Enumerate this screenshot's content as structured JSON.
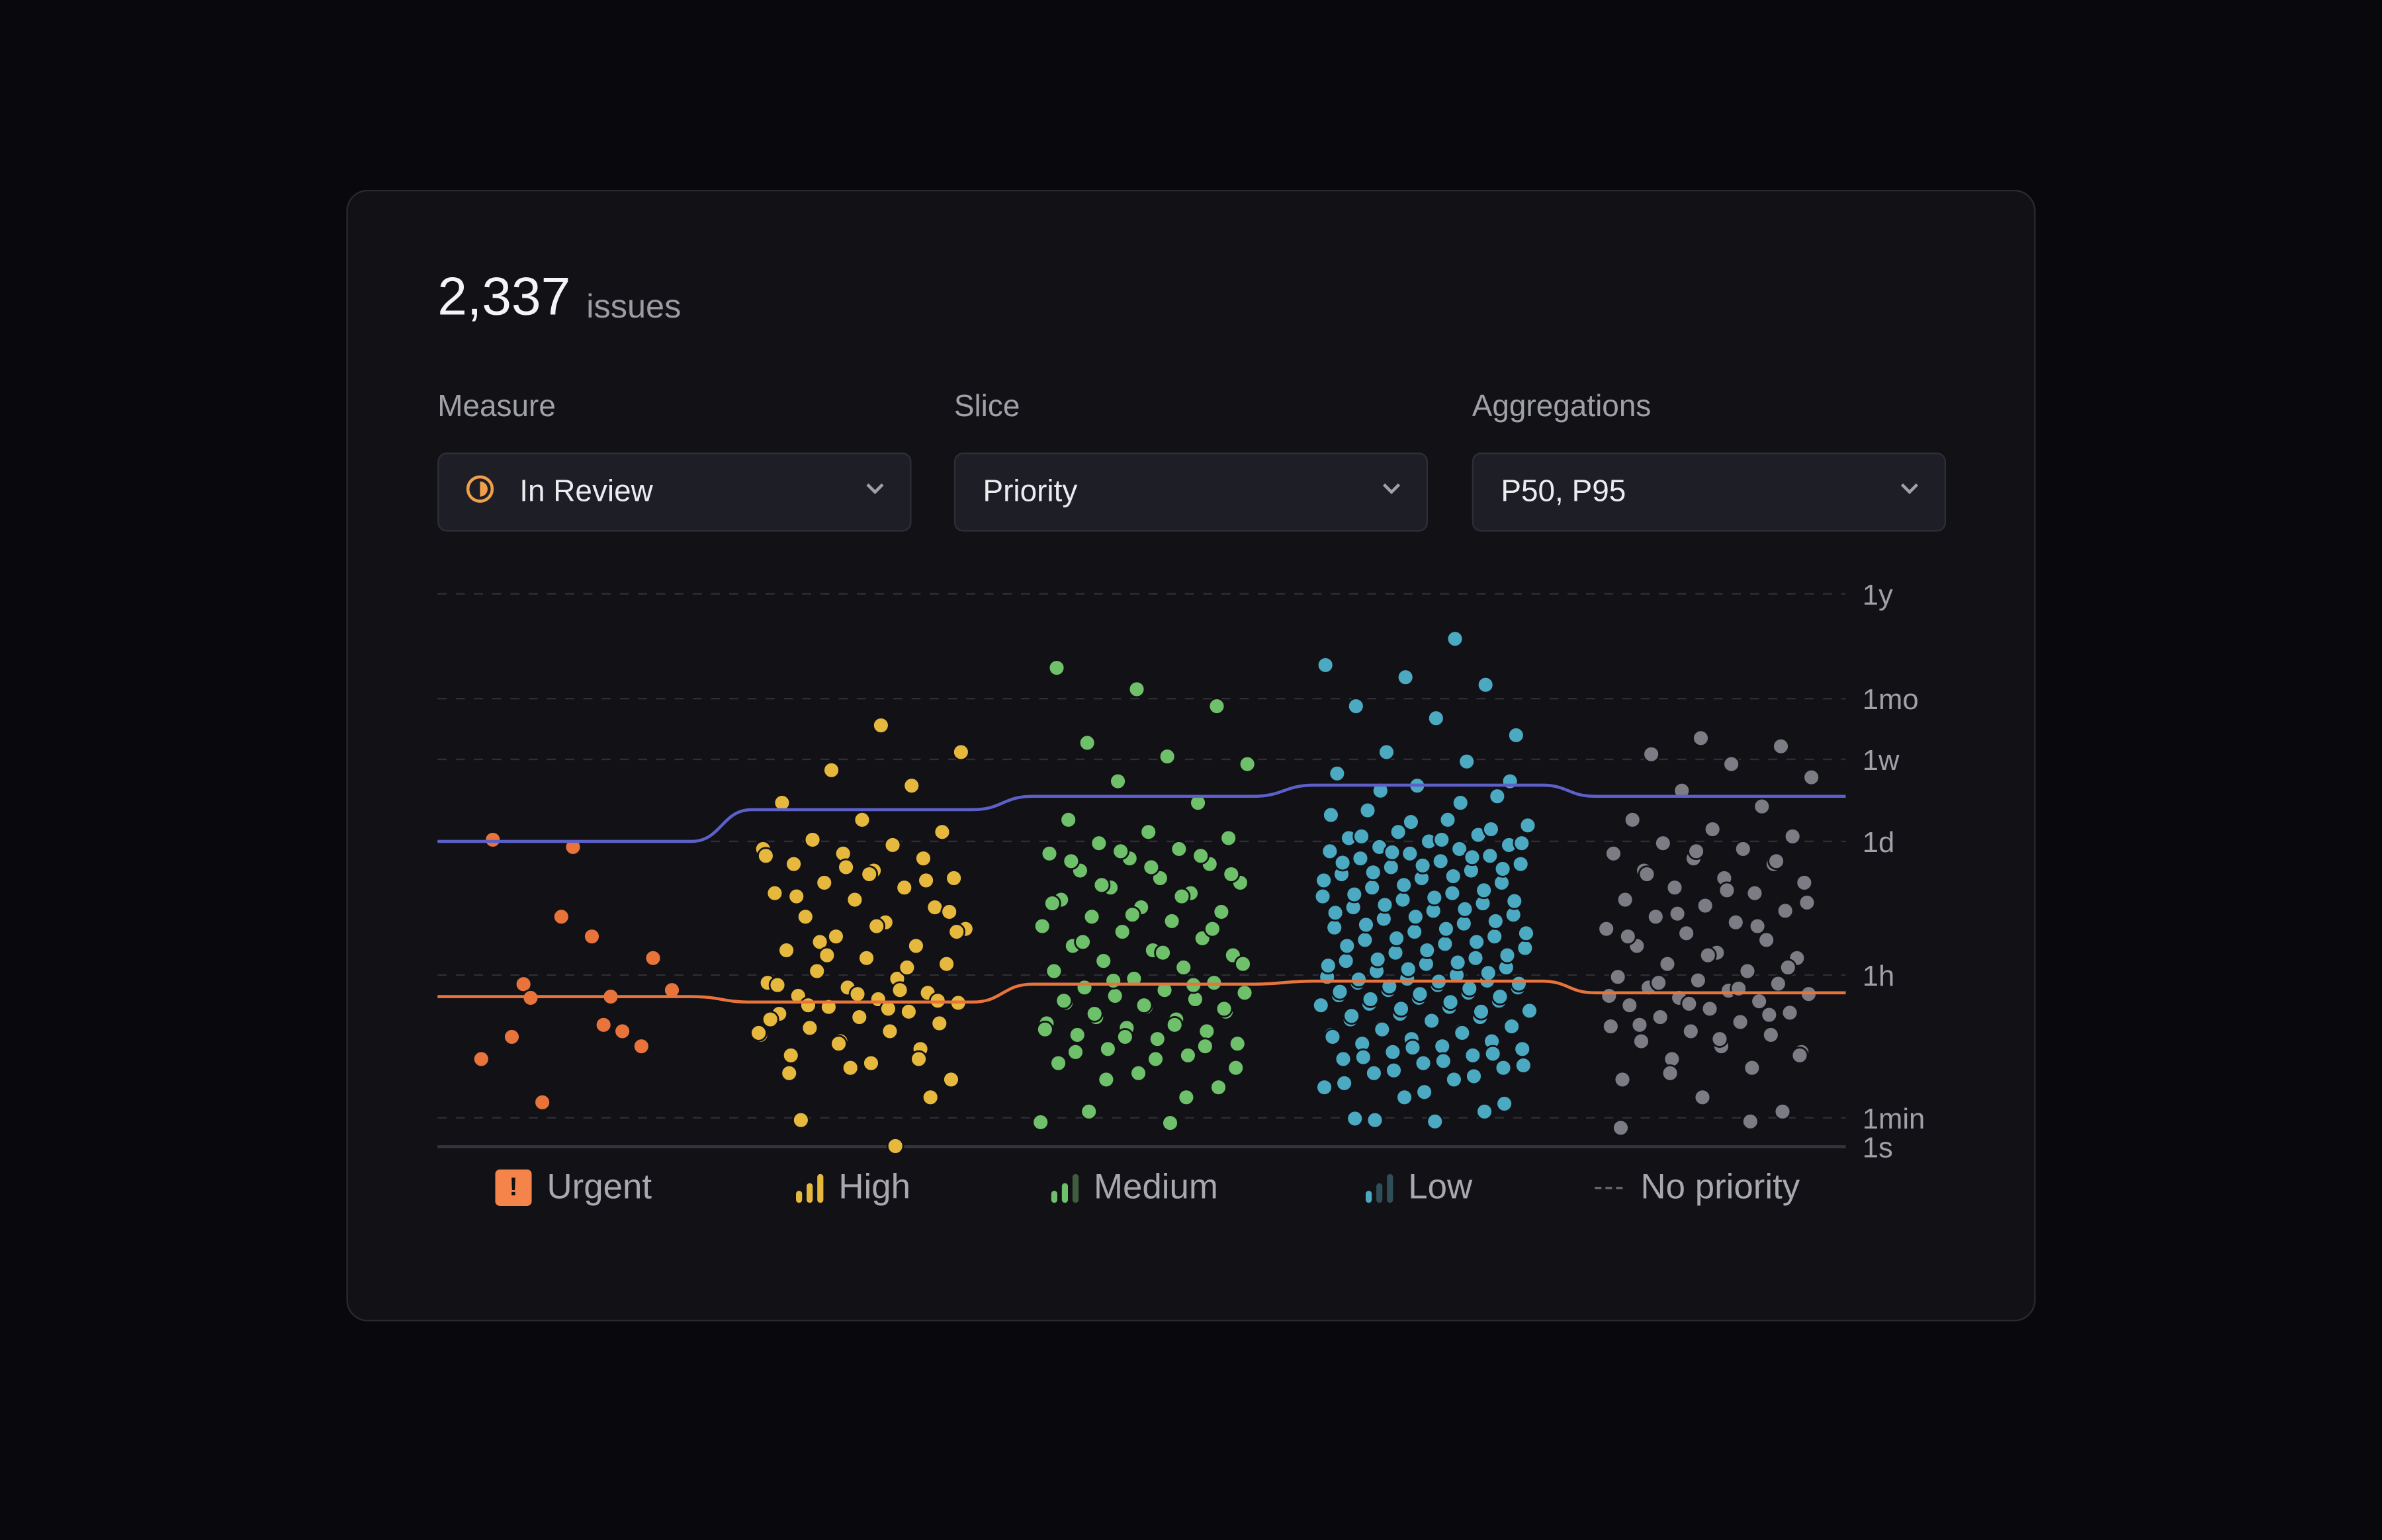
{
  "header": {
    "count": "2,337",
    "count_unit": "issues"
  },
  "filters": [
    {
      "label": "Measure",
      "value": "In Review",
      "icon": "in-review-status-icon",
      "icon_color": "#f0a04a"
    },
    {
      "label": "Slice",
      "value": "Priority"
    },
    {
      "label": "Aggregations",
      "value": "P50, P95"
    }
  ],
  "chart_data": {
    "type": "scatter",
    "title": "",
    "xlabel": "",
    "ylabel": "",
    "y_scale": "log (duration)",
    "y_ticks": [
      {
        "label": "1s",
        "hours": 0.000278
      },
      {
        "label": "1min",
        "hours": 0.0167
      },
      {
        "label": "1h",
        "hours": 1
      },
      {
        "label": "1d",
        "hours": 24
      },
      {
        "label": "1w",
        "hours": 168
      },
      {
        "label": "1mo",
        "hours": 720
      },
      {
        "label": "1y",
        "hours": 8760
      }
    ],
    "grid": true,
    "legend_placement": "bottom",
    "units": "hours",
    "categories": [
      {
        "name": "Urgent",
        "icon": "urgent-icon",
        "color": "#e8743c",
        "values": [
          0.24,
          0.77,
          1.5,
          21,
          25,
          0.2,
          0.026,
          0.65,
          2.5,
          0.17,
          0.13,
          4,
          0.09,
          0.54,
          0.52
        ],
        "p50": 0.54,
        "p95": 24
      },
      {
        "name": "High",
        "icon": "signal-high-icon",
        "color": "#e6b93e",
        "values": [
          0.05,
          0.08,
          0.1,
          0.12,
          0.15,
          0.18,
          0.2,
          0.22,
          0.25,
          0.3,
          0.33,
          0.35,
          0.4,
          0.45,
          0.5,
          0.55,
          0.6,
          0.7,
          0.8,
          0.9,
          1.1,
          1.3,
          1.5,
          1.8,
          2,
          2.5,
          3,
          3.5,
          4,
          5,
          6,
          7,
          8,
          9,
          10,
          12,
          14,
          16,
          18,
          20,
          22,
          25,
          30,
          40,
          60,
          90,
          130,
          200,
          380,
          0.012,
          0.03,
          0.07,
          0.28,
          0.65,
          2.2,
          4.5,
          11,
          0.06,
          0.09,
          0.14,
          0.19,
          0.38,
          0.42,
          0.48,
          0.58,
          0.75,
          1.2,
          1.6,
          2.8,
          3.2,
          6.5,
          9.5,
          13,
          17,
          0.0003
        ],
        "p50": 0.46,
        "p95": 51
      },
      {
        "name": "Medium",
        "icon": "signal-medium-icon",
        "color": "#6fc06a",
        "values": [
          0.02,
          0.04,
          0.06,
          0.08,
          0.1,
          0.12,
          0.14,
          0.16,
          0.18,
          0.2,
          0.22,
          0.25,
          0.28,
          0.3,
          0.35,
          0.4,
          0.45,
          0.5,
          0.55,
          0.6,
          0.65,
          0.7,
          0.8,
          0.9,
          1.1,
          1.2,
          1.4,
          1.6,
          1.8,
          2,
          2.4,
          2.8,
          3.2,
          3.6,
          4,
          4.5,
          5,
          6,
          7,
          8,
          9,
          10,
          12,
          14,
          16,
          18,
          20,
          23,
          26,
          30,
          40,
          60,
          100,
          150,
          180,
          250,
          600,
          900,
          1500,
          0.03,
          0.05,
          0.07,
          0.09,
          0.11,
          0.13,
          0.17,
          0.21,
          0.24,
          0.33,
          0.38,
          0.42,
          0.48,
          0.75,
          0.85,
          1.3,
          1.7,
          2.2,
          3,
          4.2,
          5.5,
          6.5,
          8.5,
          11,
          13,
          15,
          17,
          19,
          0.009,
          0.008
        ],
        "p50": 0.77,
        "p95": 70
      },
      {
        "name": "Low",
        "icon": "signal-low-icon",
        "color": "#4ca9c2",
        "values": [
          0.01,
          0.015,
          0.02,
          0.03,
          0.04,
          0.05,
          0.06,
          0.07,
          0.08,
          0.09,
          0.1,
          0.11,
          0.12,
          0.13,
          0.14,
          0.15,
          0.16,
          0.18,
          0.2,
          0.22,
          0.24,
          0.26,
          0.28,
          0.3,
          0.33,
          0.36,
          0.4,
          0.44,
          0.48,
          0.52,
          0.56,
          0.6,
          0.65,
          0.7,
          0.75,
          0.8,
          0.85,
          0.9,
          0.95,
          1,
          1.1,
          1.2,
          1.3,
          1.4,
          1.5,
          1.7,
          1.9,
          2.1,
          2.3,
          2.5,
          2.8,
          3.1,
          3.4,
          3.8,
          4.2,
          4.6,
          5,
          5.5,
          6,
          6.5,
          7,
          8,
          9,
          10,
          11,
          12,
          13,
          14,
          15,
          16,
          17,
          18,
          19,
          20,
          21,
          22,
          24,
          26,
          28,
          30,
          35,
          40,
          50,
          70,
          90,
          120,
          160,
          200,
          300,
          450,
          600,
          1000,
          1200,
          1600,
          3000,
          0.012,
          0.025,
          0.035,
          0.045,
          0.055,
          0.065,
          0.075,
          0.085,
          0.095,
          0.105,
          0.125,
          0.17,
          0.19,
          0.21,
          0.23,
          0.27,
          0.31,
          0.35,
          0.38,
          0.42,
          0.46,
          0.5,
          0.54,
          0.58,
          0.62,
          0.68,
          0.72,
          0.78,
          0.83,
          0.88,
          1.05,
          1.15,
          1.25,
          1.35,
          1.45,
          1.6,
          1.8,
          2,
          2.2,
          2.4,
          2.7,
          3,
          3.3,
          3.6,
          4,
          4.4,
          4.8,
          5.3,
          5.8,
          6.3,
          6.8,
          7.5,
          8.5,
          9.5,
          10.5,
          11.5,
          12.5,
          13.5,
          14.5,
          16.5,
          18.5,
          23,
          25,
          27,
          32,
          38,
          45,
          60,
          80,
          100
        ],
        "p50": 0.84,
        "p95": 91
      },
      {
        "name": "No priority",
        "icon": "no-priority-icon",
        "color": "#7c7c84",
        "values": [
          0.02,
          0.03,
          0.05,
          0.07,
          0.09,
          0.11,
          0.13,
          0.15,
          0.18,
          0.2,
          0.23,
          0.26,
          0.3,
          0.34,
          0.38,
          0.42,
          0.47,
          0.52,
          0.58,
          0.64,
          0.7,
          0.78,
          0.86,
          0.95,
          1.1,
          1.3,
          1.5,
          1.7,
          2,
          2.3,
          2.7,
          3,
          3.5,
          4,
          4.6,
          5.2,
          6,
          7,
          8,
          9,
          10,
          12,
          14,
          16,
          18,
          20,
          23,
          27,
          32,
          40,
          55,
          80,
          110,
          150,
          190,
          230,
          280,
          0.004,
          0.01,
          0.06,
          0.1,
          0.16,
          0.24,
          0.32,
          0.44,
          0.55,
          0.68,
          0.8,
          1.2,
          1.6,
          2.5,
          3.2,
          4.3,
          5.6,
          7.5,
          11,
          15,
          19
        ],
        "p50": 0.6,
        "p95": 70
      }
    ],
    "lines": [
      {
        "name": "P50",
        "color": "#e8743c"
      },
      {
        "name": "P95",
        "color": "#5d60c8"
      }
    ]
  }
}
